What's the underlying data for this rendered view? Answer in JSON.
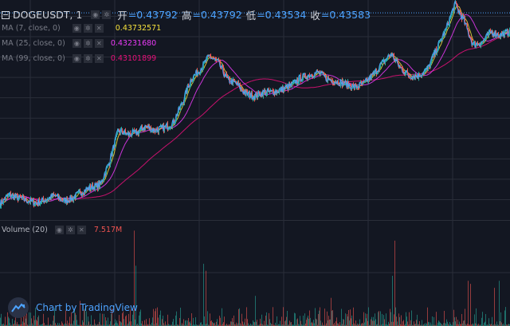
{
  "header": {
    "symbol": "DOGEUSDT, 1",
    "open_label": "开",
    "open": "=0.43792",
    "high_label": "高",
    "high": "=0.43792",
    "low_label": "低",
    "low": "=0.43534",
    "close_label": "收",
    "close": "=0.43583"
  },
  "indicators": [
    {
      "label": "MA (7, close, 0)",
      "value": "0.43732571",
      "color": "#f7e33c"
    },
    {
      "label": "MA (25, close, 0)",
      "value": "0.43231680",
      "color": "#ea3af7"
    },
    {
      "label": "MA (99, close, 0)",
      "value": "0.43101899",
      "color": "#e8107a"
    }
  ],
  "volume": {
    "label": "Volume (20)",
    "value": "7.517M",
    "color": "#ef5350"
  },
  "watermark": {
    "text": "Chart by TradingView",
    "icon": "tradingview-logo-icon"
  },
  "icons": {
    "eye": "eye-icon",
    "settings": "gear-icon",
    "remove": "close-icon"
  },
  "colors": {
    "background": "#131722",
    "grid": "#2a2e39",
    "up": "#26a69a",
    "down": "#ef5350",
    "price_line": "#4da3ff",
    "ma7": "#f7e33c",
    "ma25": "#ea3af7",
    "ma99": "#e8107a"
  },
  "chart_data": {
    "type": "line",
    "series": [
      {
        "name": "DOGEUSDT, 1",
        "role": "price",
        "values": [
          0.4145,
          0.4156,
          0.4152,
          0.4149,
          0.4146,
          0.415,
          0.4155,
          0.4148,
          0.4152,
          0.416,
          0.4165,
          0.4168,
          0.4196,
          0.4235,
          0.423,
          0.4232,
          0.424,
          0.4235,
          0.4238,
          0.4244,
          0.4268,
          0.4298,
          0.431,
          0.4326,
          0.4318,
          0.4297,
          0.4292,
          0.428,
          0.4277,
          0.4282,
          0.4282,
          0.4285,
          0.429,
          0.4299,
          0.4303,
          0.4306,
          0.4298,
          0.4295,
          0.4292,
          0.4288,
          0.4292,
          0.4303,
          0.4317,
          0.4329,
          0.4312,
          0.4302,
          0.4302,
          0.431,
          0.4335,
          0.4358,
          0.439,
          0.437,
          0.434,
          0.4343,
          0.4356,
          0.4352,
          0.4356
        ]
      },
      {
        "name": "MA (7, close, 0)",
        "role": "ma",
        "values": []
      },
      {
        "name": "MA (25, close, 0)",
        "role": "ma",
        "values": []
      },
      {
        "name": "MA (99, close, 0)",
        "role": "ma",
        "values": []
      }
    ],
    "price_scale": [
      0.4125,
      0.4395
    ],
    "last_value": 0.43583,
    "grid": true
  }
}
